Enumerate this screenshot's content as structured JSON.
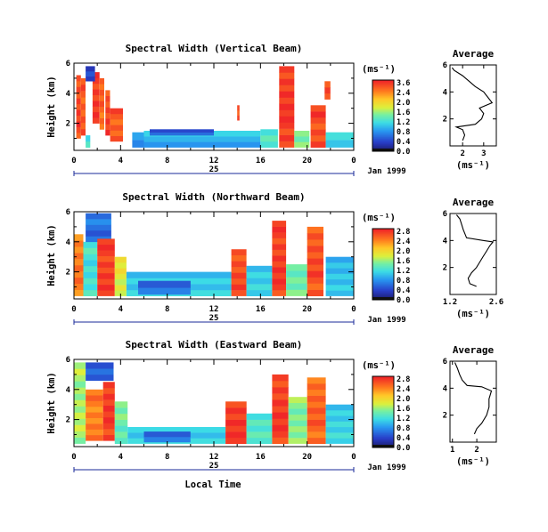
{
  "chart_data": [
    {
      "type": "heatmap",
      "title": "Spectral Width (Vertical Beam)",
      "ylabel": "Height (km)",
      "xticks": [
        "0",
        "4",
        "8",
        "12",
        "16",
        "20",
        "0"
      ],
      "xlim": [
        0,
        24
      ],
      "ylim": [
        0.2,
        6
      ],
      "yticks": [
        "2",
        "4",
        "6"
      ],
      "date_label": "Jan 1999",
      "day_label": "25",
      "colorbar": {
        "label": "(ms⁻¹)",
        "ticks": [
          "3.6",
          "2.4",
          "2.0",
          "1.6",
          "1.2",
          "0.8",
          "0.4",
          "0.0"
        ],
        "range": [
          0,
          3.6
        ]
      },
      "columns": [
        {
          "x": [
            0.2,
            0.6
          ],
          "y": [
            1.0,
            5.2
          ],
          "v": 3.4
        },
        {
          "x": [
            0.6,
            1.0
          ],
          "y": [
            1.2,
            5.0
          ],
          "v": 3.3
        },
        {
          "x": [
            1.0,
            1.4
          ],
          "y": [
            0.4,
            1.2
          ],
          "v": 1.6
        },
        {
          "x": [
            1.6,
            2.2
          ],
          "y": [
            2.0,
            5.4
          ],
          "v": 3.5
        },
        {
          "x": [
            2.2,
            2.6
          ],
          "y": [
            1.6,
            5.0
          ],
          "v": 3.2
        },
        {
          "x": [
            2.7,
            3.1
          ],
          "y": [
            1.2,
            4.2
          ],
          "v": 3.4
        },
        {
          "x": [
            3.1,
            4.2
          ],
          "y": [
            0.8,
            3.0
          ],
          "v": 3.3
        },
        {
          "x": [
            1.0,
            1.8
          ],
          "y": [
            4.8,
            5.8
          ],
          "v": 0.4
        },
        {
          "x": [
            5.0,
            6.0
          ],
          "y": [
            0.4,
            1.4
          ],
          "v": 1.0
        },
        {
          "x": [
            6.0,
            16.0
          ],
          "y": [
            0.4,
            1.5
          ],
          "v": 1.2
        },
        {
          "x": [
            6.5,
            12.0
          ],
          "y": [
            1.2,
            1.6
          ],
          "v": 0.6
        },
        {
          "x": [
            14.0,
            14.2
          ],
          "y": [
            2.2,
            3.2
          ],
          "v": 3.4
        },
        {
          "x": [
            16.0,
            17.5
          ],
          "y": [
            0.4,
            1.6
          ],
          "v": 1.6
        },
        {
          "x": [
            17.6,
            18.9
          ],
          "y": [
            0.4,
            5.8
          ],
          "v": 3.5
        },
        {
          "x": [
            18.9,
            20.2
          ],
          "y": [
            0.4,
            1.5
          ],
          "v": 1.8
        },
        {
          "x": [
            20.3,
            21.6
          ],
          "y": [
            0.4,
            3.2
          ],
          "v": 3.4
        },
        {
          "x": [
            21.5,
            22.0
          ],
          "y": [
            3.6,
            4.8
          ],
          "v": 3.3
        },
        {
          "x": [
            21.6,
            24.0
          ],
          "y": [
            0.4,
            1.4
          ],
          "v": 1.4
        }
      ],
      "average": {
        "title": "Average",
        "xlabel": "(ms⁻¹)",
        "xticks": [
          "2",
          "3"
        ],
        "xlim": [
          1.4,
          3.6
        ],
        "yticks": [
          "2",
          "4",
          "6"
        ],
        "profile": [
          [
            2.0,
            0.4
          ],
          [
            2.1,
            0.8
          ],
          [
            2.0,
            1.2
          ],
          [
            1.7,
            1.4
          ],
          [
            2.6,
            1.6
          ],
          [
            2.9,
            2.0
          ],
          [
            3.0,
            2.4
          ],
          [
            2.8,
            2.8
          ],
          [
            3.4,
            3.2
          ],
          [
            3.2,
            3.6
          ],
          [
            3.0,
            4.0
          ],
          [
            2.6,
            4.4
          ],
          [
            2.3,
            4.8
          ],
          [
            2.0,
            5.2
          ],
          [
            1.6,
            5.6
          ],
          [
            1.5,
            5.8
          ]
        ]
      }
    },
    {
      "type": "heatmap",
      "title": "Spectral Width (Northward Beam)",
      "ylabel": "Height (km)",
      "xticks": [
        "0",
        "4",
        "8",
        "12",
        "16",
        "20",
        "0"
      ],
      "xlim": [
        0,
        24
      ],
      "ylim": [
        0.2,
        6
      ],
      "yticks": [
        "2",
        "4",
        "6"
      ],
      "date_label": "Jan 1999",
      "day_label": "25",
      "colorbar": {
        "label": "(ms⁻¹)",
        "ticks": [
          "2.8",
          "2.4",
          "2.0",
          "1.6",
          "1.2",
          "0.8",
          "0.4",
          "0.0"
        ],
        "range": [
          0,
          2.8
        ]
      },
      "columns": [
        {
          "x": [
            0.0,
            0.8
          ],
          "y": [
            0.4,
            4.5
          ],
          "v": 2.4
        },
        {
          "x": [
            0.8,
            2.0
          ],
          "y": [
            0.4,
            4.0
          ],
          "v": 1.2
        },
        {
          "x": [
            1.0,
            3.2
          ],
          "y": [
            4.0,
            5.9
          ],
          "v": 0.6
        },
        {
          "x": [
            2.0,
            3.5
          ],
          "y": [
            0.4,
            4.2
          ],
          "v": 2.7
        },
        {
          "x": [
            3.5,
            4.5
          ],
          "y": [
            0.4,
            3.0
          ],
          "v": 1.8
        },
        {
          "x": [
            4.5,
            13.5
          ],
          "y": [
            0.4,
            2.0
          ],
          "v": 1.0
        },
        {
          "x": [
            5.5,
            10.0
          ],
          "y": [
            0.5,
            1.4
          ],
          "v": 0.6
        },
        {
          "x": [
            13.5,
            14.8
          ],
          "y": [
            0.4,
            3.5
          ],
          "v": 2.6
        },
        {
          "x": [
            14.8,
            17.0
          ],
          "y": [
            0.4,
            2.4
          ],
          "v": 1.1
        },
        {
          "x": [
            17.0,
            18.2
          ],
          "y": [
            0.4,
            5.4
          ],
          "v": 2.7
        },
        {
          "x": [
            18.2,
            20.0
          ],
          "y": [
            0.4,
            2.5
          ],
          "v": 1.4
        },
        {
          "x": [
            20.0,
            21.4
          ],
          "y": [
            0.4,
            5.0
          ],
          "v": 2.6
        },
        {
          "x": [
            21.6,
            24.0
          ],
          "y": [
            0.4,
            3.0
          ],
          "v": 1.0
        }
      ],
      "average": {
        "title": "Average",
        "xlabel": "(ms⁻¹)",
        "xticks": [
          "1.2",
          "2.6"
        ],
        "xlim": [
          1.2,
          2.6
        ],
        "yticks": [
          "2",
          "4",
          "6"
        ],
        "profile": [
          [
            2.0,
            0.6
          ],
          [
            1.8,
            0.8
          ],
          [
            1.75,
            1.2
          ],
          [
            1.85,
            1.6
          ],
          [
            2.0,
            2.0
          ],
          [
            2.1,
            2.4
          ],
          [
            2.2,
            2.8
          ],
          [
            2.3,
            3.2
          ],
          [
            2.4,
            3.6
          ],
          [
            2.5,
            3.9
          ],
          [
            2.2,
            4.0
          ],
          [
            1.7,
            4.2
          ],
          [
            1.6,
            4.8
          ],
          [
            1.55,
            5.2
          ],
          [
            1.5,
            5.6
          ],
          [
            1.4,
            5.9
          ]
        ]
      }
    },
    {
      "type": "heatmap",
      "title": "Spectral Width (Eastward Beam)",
      "ylabel": "Height (km)",
      "xticks": [
        "0",
        "4",
        "8",
        "12",
        "16",
        "20",
        "0"
      ],
      "xlim": [
        0,
        24
      ],
      "ylim": [
        0.2,
        6
      ],
      "yticks": [
        "2",
        "4",
        "6"
      ],
      "date_label": "Jan 1999",
      "day_label": "25",
      "colorbar": {
        "label": "(ms⁻¹)",
        "ticks": [
          "2.8",
          "2.4",
          "2.0",
          "1.6",
          "1.2",
          "0.8",
          "0.4",
          "0.0"
        ],
        "range": [
          0,
          2.8
        ]
      },
      "columns": [
        {
          "x": [
            0.0,
            1.0
          ],
          "y": [
            0.4,
            5.8
          ],
          "v": 1.6
        },
        {
          "x": [
            1.0,
            2.5
          ],
          "y": [
            0.6,
            4.0
          ],
          "v": 2.4
        },
        {
          "x": [
            2.5,
            3.5
          ],
          "y": [
            0.6,
            4.5
          ],
          "v": 2.7
        },
        {
          "x": [
            1.0,
            3.4
          ],
          "y": [
            4.6,
            5.8
          ],
          "v": 0.5
        },
        {
          "x": [
            3.5,
            4.6
          ],
          "y": [
            0.4,
            3.2
          ],
          "v": 1.4
        },
        {
          "x": [
            4.6,
            13.0
          ],
          "y": [
            0.4,
            1.5
          ],
          "v": 1.0
        },
        {
          "x": [
            6.0,
            10.0
          ],
          "y": [
            0.5,
            1.2
          ],
          "v": 0.6
        },
        {
          "x": [
            13.0,
            14.8
          ],
          "y": [
            0.4,
            3.2
          ],
          "v": 2.7
        },
        {
          "x": [
            14.8,
            17.0
          ],
          "y": [
            0.4,
            2.4
          ],
          "v": 1.3
        },
        {
          "x": [
            17.0,
            18.4
          ],
          "y": [
            0.4,
            5.0
          ],
          "v": 2.7
        },
        {
          "x": [
            18.4,
            20.0
          ],
          "y": [
            0.4,
            3.5
          ],
          "v": 1.5
        },
        {
          "x": [
            20.0,
            21.6
          ],
          "y": [
            0.4,
            4.8
          ],
          "v": 2.5
        },
        {
          "x": [
            21.6,
            24.0
          ],
          "y": [
            0.4,
            3.0
          ],
          "v": 1.1
        }
      ],
      "average": {
        "title": "Average",
        "xlabel": "(ms⁻¹)",
        "xticks": [
          "1",
          "2"
        ],
        "xlim": [
          0.9,
          2.8
        ],
        "yticks": [
          "2",
          "4",
          "6"
        ],
        "profile": [
          [
            1.9,
            0.6
          ],
          [
            2.0,
            1.0
          ],
          [
            2.2,
            1.4
          ],
          [
            2.4,
            2.0
          ],
          [
            2.5,
            2.6
          ],
          [
            2.5,
            3.2
          ],
          [
            2.6,
            3.8
          ],
          [
            2.2,
            4.1
          ],
          [
            1.6,
            4.2
          ],
          [
            1.4,
            4.6
          ],
          [
            1.3,
            5.0
          ],
          [
            1.2,
            5.5
          ],
          [
            1.1,
            5.9
          ]
        ]
      }
    }
  ],
  "footer": {
    "xlabel": "Local Time"
  }
}
